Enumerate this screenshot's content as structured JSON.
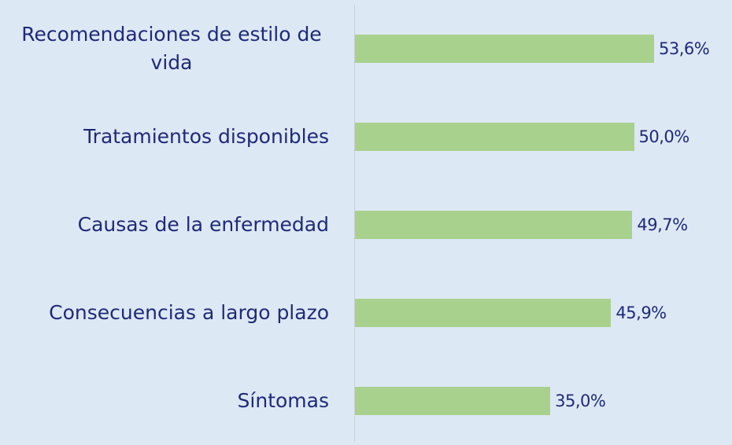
{
  "chart_data": {
    "type": "bar",
    "orientation": "horizontal",
    "categories": [
      "Recomendaciones de estilo de vida",
      "Tratamientos disponibles",
      "Causas de la enfermedad",
      "Consecuencias a largo plazo",
      "Síntomas"
    ],
    "values": [
      53.6,
      50.0,
      49.7,
      45.9,
      35.0
    ],
    "value_labels": [
      "53,6%",
      "50,0%",
      "49,7%",
      "45,9%",
      "35,0%"
    ],
    "color": "#a9d18e"
  }
}
